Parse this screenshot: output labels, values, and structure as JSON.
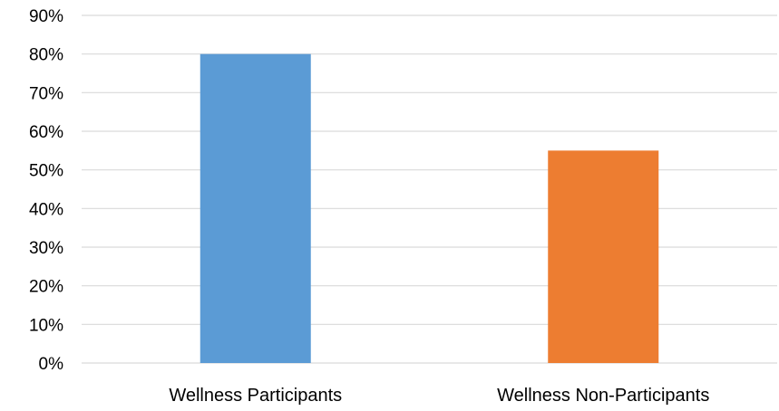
{
  "chart_data": {
    "type": "bar",
    "title": "",
    "xlabel": "",
    "ylabel": "",
    "categories": [
      "Wellness Participants",
      "Wellness Non-Participants"
    ],
    "values": [
      80,
      55
    ],
    "value_unit": "%",
    "ylim": [
      0,
      90
    ],
    "yticks": [
      0,
      10,
      20,
      30,
      40,
      50,
      60,
      70,
      80,
      90
    ],
    "ytick_labels": [
      "0%",
      "10%",
      "20%",
      "30%",
      "40%",
      "50%",
      "60%",
      "70%",
      "80%",
      "90%"
    ],
    "bar_colors": [
      "#5b9bd5",
      "#ed7d31"
    ],
    "gridline_color": "#d9d9d9",
    "grid": true,
    "legend": false
  }
}
